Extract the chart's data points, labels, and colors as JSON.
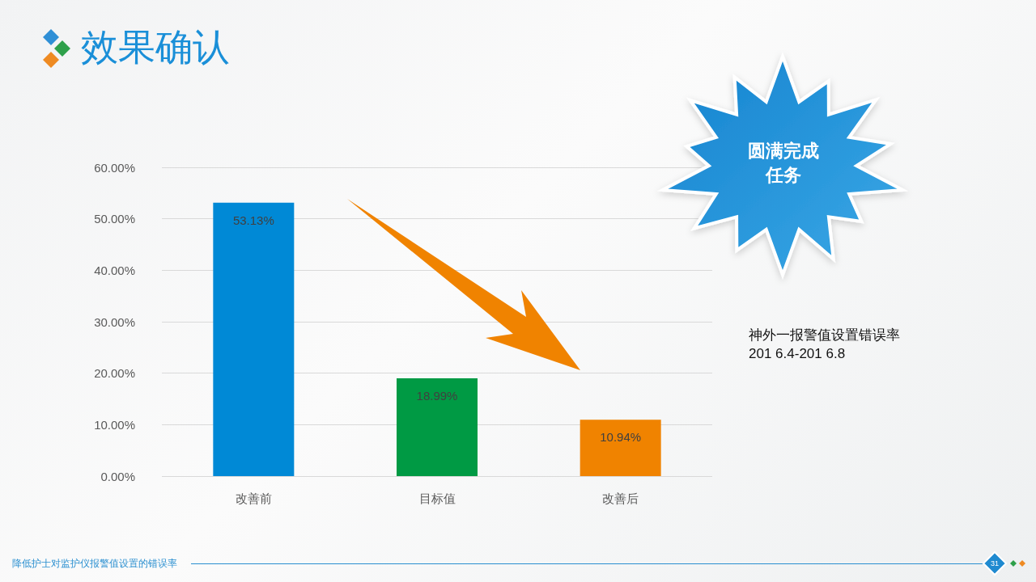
{
  "chart_data": {
    "type": "bar",
    "title": "效果确认",
    "categories": [
      "改善前",
      "目标值",
      "改善后"
    ],
    "values": [
      53.13,
      18.99,
      10.94
    ],
    "colors": [
      "#0089d6",
      "#009a44",
      "#f08300"
    ],
    "value_labels": [
      "53.13%",
      "18.99%",
      "10.94%"
    ],
    "ylim": [
      0,
      60
    ],
    "yticks": [
      {
        "value": 0,
        "label": "0.00%"
      },
      {
        "value": 10,
        "label": "10.00%"
      },
      {
        "value": 20,
        "label": "20.00%"
      },
      {
        "value": 30,
        "label": "30.00%"
      },
      {
        "value": 40,
        "label": "40.00%"
      },
      {
        "value": 50,
        "label": "50.00%"
      },
      {
        "value": 60,
        "label": "60.00%"
      }
    ],
    "grid": "y",
    "annotations": [
      "圆满完成任务",
      "神外一报警值设置错误率\n201 6.4-201 6.8",
      "降低护士对监护仪报警值设置的错误率",
      "31"
    ]
  }
}
